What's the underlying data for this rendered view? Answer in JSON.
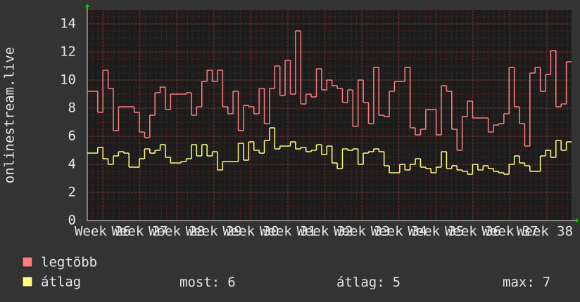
{
  "chart_data": {
    "type": "step",
    "y_label": "onlinestream.live",
    "ylim": [
      0,
      15
    ],
    "yticks": [
      0,
      2,
      4,
      6,
      8,
      10,
      12,
      14
    ],
    "grid": true,
    "xticks": [
      "Week 26",
      "Week 27",
      "Week 28",
      "Week 29",
      "Week 30",
      "Week 31",
      "Week 32",
      "Week 33",
      "Week 34",
      "Week 35",
      "Week 36",
      "Week 37",
      "Week 38"
    ],
    "series": [
      {
        "name": "legtöbb",
        "color": "#ff7f7f",
        "values": [
          9.2,
          9.2,
          7.7,
          10.7,
          9.4,
          6.4,
          8.1,
          8.1,
          8.1,
          7.7,
          6.3,
          5.9,
          7.5,
          9.1,
          9.5,
          7.9,
          9.0,
          9.0,
          9.0,
          9.1,
          7.5,
          8.1,
          9.9,
          10.7,
          9.9,
          10.7,
          8.1,
          7.6,
          9.2,
          6.4,
          8.2,
          8.1,
          7.6,
          9.4,
          6.9,
          9.4,
          11.0,
          8.9,
          11.4,
          9.0,
          13.5,
          8.3,
          9.0,
          8.8,
          10.8,
          9.3,
          10.0,
          9.6,
          9.4,
          8.4,
          9.3,
          6.7,
          10.0,
          8.4,
          6.9,
          10.9,
          7.5,
          7.4,
          9.2,
          9.9,
          9.9,
          10.9,
          6.6,
          6.1,
          6.5,
          7.9,
          7.9,
          6.1,
          9.6,
          9.2,
          6.5,
          5.0,
          7.4,
          8.5,
          7.3,
          7.3,
          7.3,
          6.3,
          6.8,
          6.9,
          7.6,
          10.9,
          8.1,
          6.9,
          5.3,
          10.5,
          10.9,
          9.2,
          10.4,
          12.1,
          8.1,
          8.3,
          11.3
        ]
      },
      {
        "name": "átlag",
        "color": "#ffff7f",
        "values": [
          4.8,
          4.8,
          5.2,
          4.4,
          4.0,
          4.6,
          4.9,
          4.8,
          3.8,
          3.8,
          4.4,
          5.1,
          4.8,
          5.0,
          5.4,
          4.5,
          4.1,
          4.1,
          4.2,
          4.4,
          5.4,
          4.6,
          5.4,
          4.6,
          4.9,
          3.6,
          4.2,
          4.2,
          4.2,
          5.5,
          4.3,
          5.6,
          5.0,
          4.8,
          5.7,
          6.6,
          5.1,
          5.3,
          5.3,
          5.6,
          5.1,
          5.2,
          4.9,
          5.0,
          5.4,
          4.7,
          5.3,
          4.1,
          3.7,
          5.1,
          5.0,
          5.1,
          4.0,
          4.8,
          4.9,
          5.1,
          4.9,
          3.9,
          3.4,
          3.4,
          4.0,
          3.6,
          4.0,
          4.4,
          3.8,
          3.7,
          3.4,
          3.8,
          4.9,
          3.7,
          3.9,
          3.6,
          3.5,
          3.3,
          4.0,
          3.6,
          3.9,
          3.7,
          3.5,
          3.4,
          3.3,
          4.0,
          4.6,
          4.1,
          3.9,
          3.5,
          3.5,
          4.6,
          5.0,
          4.5,
          5.7,
          5.0,
          5.6
        ]
      }
    ],
    "stats": [
      {
        "label": "most:",
        "value": 6
      },
      {
        "label": "átlag:",
        "value": 5
      },
      {
        "label": "max:",
        "value": 7
      }
    ]
  }
}
